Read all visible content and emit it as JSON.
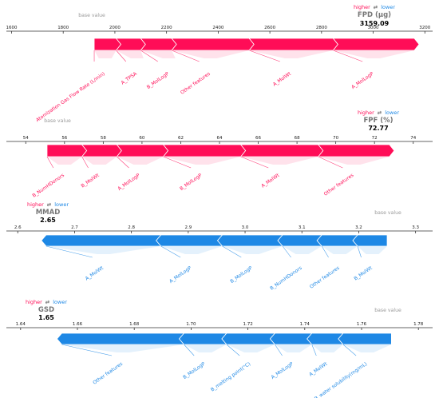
{
  "colors": {
    "higher": "#ff0d57",
    "lower": "#1e88e5",
    "axis": "#333333",
    "hint": "#9a9a9a",
    "title": "#777777"
  },
  "chart_data": [
    {
      "type": "force",
      "title": "FPD (μg)",
      "output_value": "3159.09",
      "output_numeric": 3159.09,
      "base_label": "base value",
      "base_value": 1920,
      "higher_label": "higher",
      "lower_label": "lower",
      "swap_glyph": "⇄",
      "direction": "higher",
      "xlim": [
        1580,
        3230
      ],
      "ticks": [
        1600,
        1800,
        2000,
        2200,
        2400,
        2600,
        2800,
        3000,
        3200
      ],
      "tick_labels": [
        "1600",
        "1800",
        "2000",
        "2200",
        "2400",
        "2600",
        "2800",
        "3000",
        "3200"
      ],
      "segments": [
        {
          "label": "Atomization Gas Flow Rate (L/min)",
          "from": 1920,
          "to": 2005
        },
        {
          "label": "A_TPSA",
          "from": 2005,
          "to": 2100
        },
        {
          "label": "B_MolLogP",
          "from": 2100,
          "to": 2220
        },
        {
          "label": "Other features",
          "from": 2220,
          "to": 2520
        },
        {
          "label": "A_MolWt",
          "from": 2520,
          "to": 2845
        },
        {
          "label": "A_MolLogP",
          "from": 2845,
          "to": 3159
        }
      ]
    },
    {
      "type": "force",
      "title": "FPF (%)",
      "output_value": "72.77",
      "output_numeric": 72.77,
      "base_label": "base value",
      "base_value": 55.1,
      "higher_label": "higher",
      "lower_label": "lower",
      "swap_glyph": "⇄",
      "direction": "higher",
      "xlim": [
        53,
        75
      ],
      "ticks": [
        54,
        56,
        58,
        60,
        62,
        64,
        66,
        68,
        70,
        72,
        74
      ],
      "tick_labels": [
        "54",
        "56",
        "58",
        "60",
        "62",
        "64",
        "66",
        "68",
        "70",
        "72",
        "74"
      ],
      "segments": [
        {
          "label": "B_NumHDonors",
          "from": 55.1,
          "to": 56.9
        },
        {
          "label": "B_MolWt",
          "from": 56.9,
          "to": 58.7
        },
        {
          "label": "A_MolLogP",
          "from": 58.7,
          "to": 61.1
        },
        {
          "label": "B_MolLogP",
          "from": 61.1,
          "to": 65.1
        },
        {
          "label": "A_MolWt",
          "from": 65.1,
          "to": 69.1
        },
        {
          "label": "Other features",
          "from": 69.1,
          "to": 72.77
        }
      ]
    },
    {
      "type": "force",
      "title": "MMAD",
      "output_value": "2.65",
      "output_numeric": 2.65,
      "base_label": "base value",
      "base_value": 3.25,
      "higher_label": "higher",
      "lower_label": "lower",
      "swap_glyph": "⇄",
      "direction": "lower",
      "xlim": [
        2.58,
        3.33
      ],
      "ticks": [
        2.6,
        2.7,
        2.8,
        2.9,
        3.0,
        3.1,
        3.2,
        3.3
      ],
      "tick_labels": [
        "2.6",
        "2.7",
        "2.8",
        "2.9",
        "3.0",
        "3.1",
        "3.2",
        "3.3"
      ],
      "segments": [
        {
          "label": "A_MolWt",
          "from": 2.65,
          "to": 2.852
        },
        {
          "label": "A_MolLogP",
          "from": 2.852,
          "to": 2.96
        },
        {
          "label": "B_MolLogP",
          "from": 2.96,
          "to": 3.066
        },
        {
          "label": "B_NumHDonors",
          "from": 3.066,
          "to": 3.135
        },
        {
          "label": "Other features",
          "from": 3.135,
          "to": 3.198
        },
        {
          "label": "B_MolWt",
          "from": 3.198,
          "to": 3.25
        }
      ]
    },
    {
      "type": "force",
      "title": "GSD",
      "output_value": "1.65",
      "output_numeric": 1.65,
      "base_label": "base value",
      "base_value": 1.7705,
      "higher_label": "higher",
      "lower_label": "lower",
      "swap_glyph": "⇄",
      "direction": "lower",
      "xlim": [
        1.635,
        1.785
      ],
      "ticks": [
        1.64,
        1.66,
        1.68,
        1.7,
        1.72,
        1.74,
        1.76,
        1.78
      ],
      "tick_labels": [
        "1.64",
        "1.66",
        "1.68",
        "1.70",
        "1.72",
        "1.74",
        "1.76",
        "1.78"
      ],
      "segments": [
        {
          "label": "Other features",
          "from": 1.6545,
          "to": 1.6975
        },
        {
          "label": "B_MolLogP",
          "from": 1.6975,
          "to": 1.7125
        },
        {
          "label": "B_melting point(°C)",
          "from": 1.7125,
          "to": 1.7295
        },
        {
          "label": "A_MolLogP",
          "from": 1.7295,
          "to": 1.7425
        },
        {
          "label": "A_MolWt",
          "from": 1.7425,
          "to": 1.7535
        },
        {
          "label": "B_water solubility(mg/mL)",
          "from": 1.7535,
          "to": 1.7705
        }
      ]
    }
  ]
}
